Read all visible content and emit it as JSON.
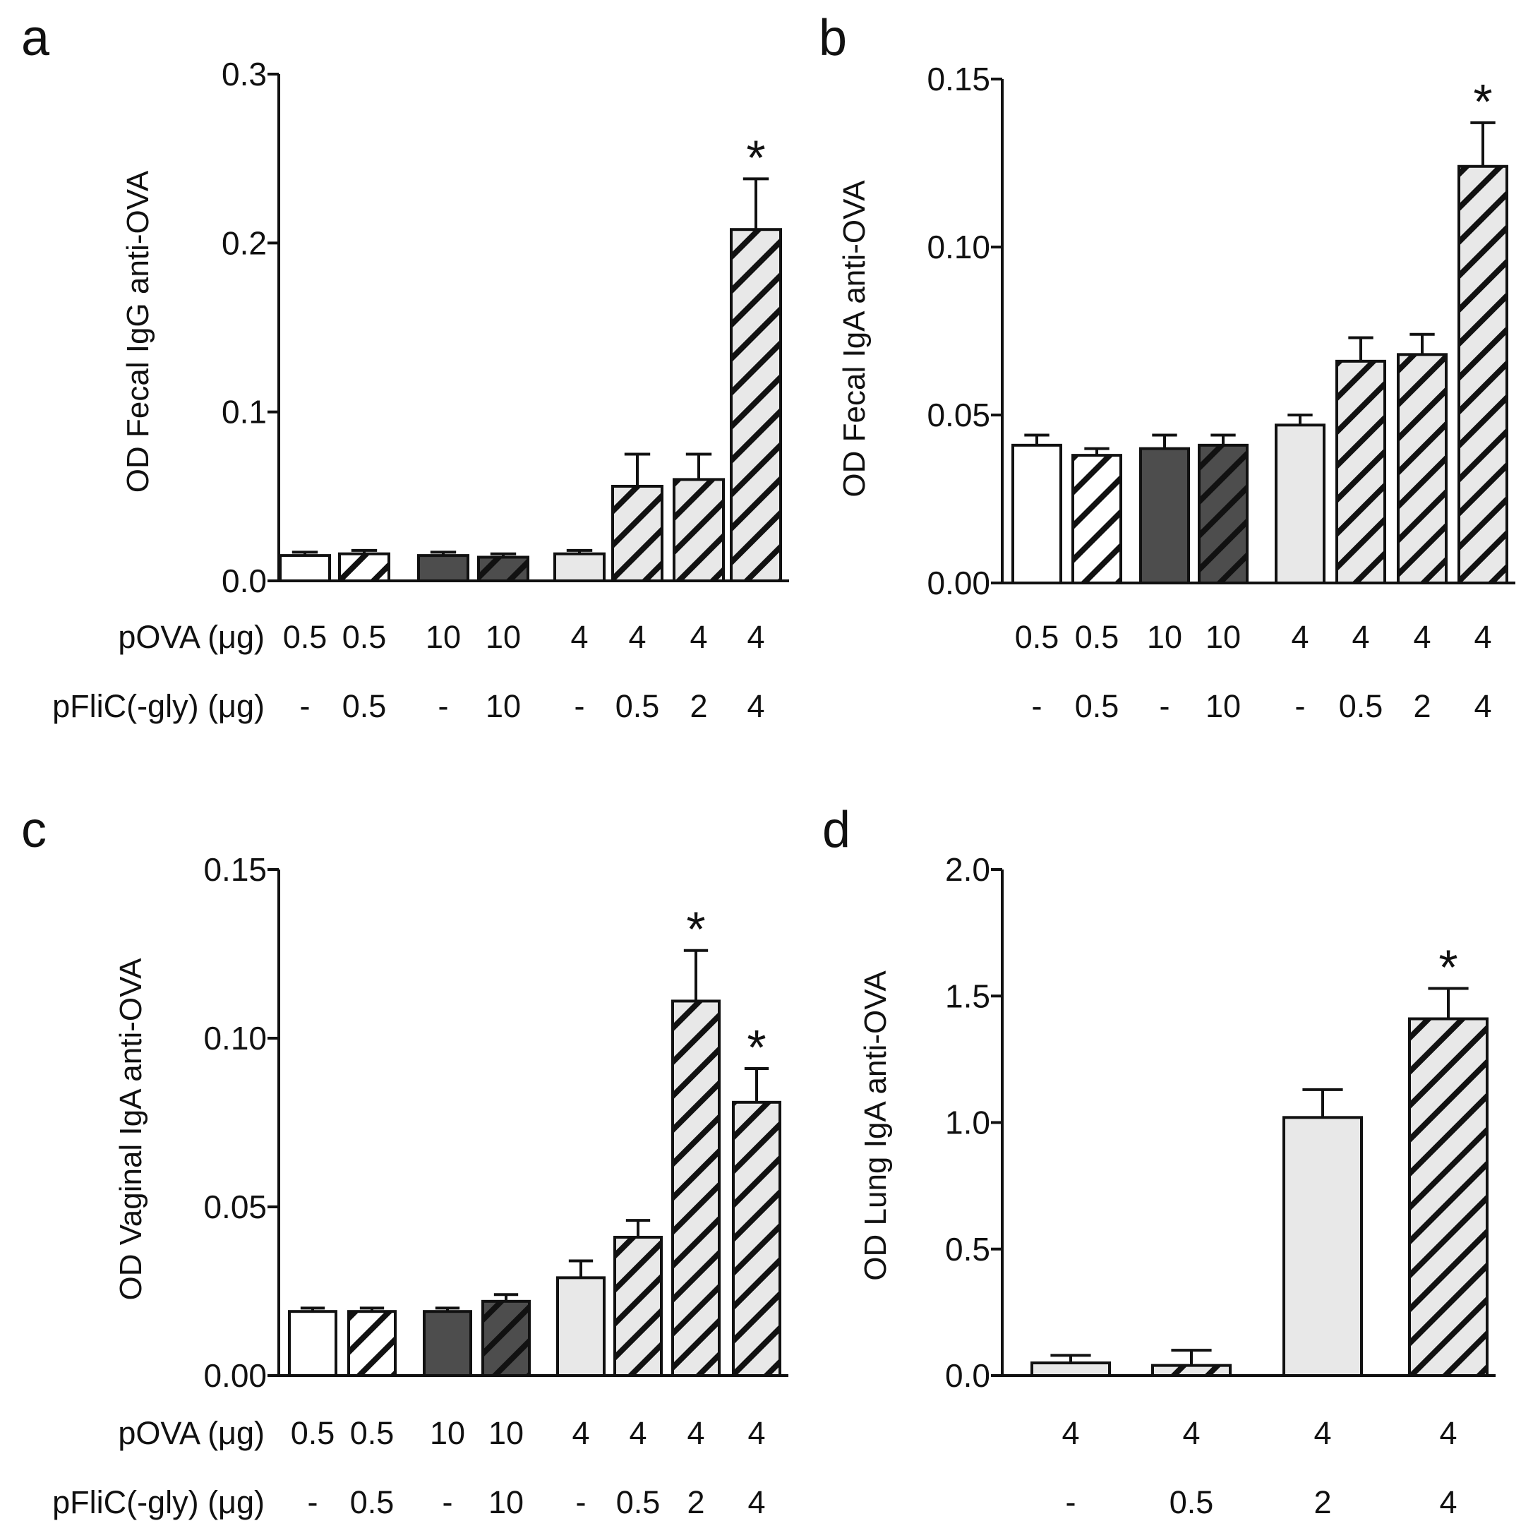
{
  "colors": {
    "white": "#ffffff",
    "dark": "#4d4d4d",
    "light": "#e8e8e8",
    "stroke": "#111111"
  },
  "chart_data": [
    {
      "id": "a",
      "letter": "a",
      "type": "bar",
      "ylabel": "OD Fecal IgG anti-OVA",
      "ylim": [
        0,
        0.3
      ],
      "yticks": [
        "0.0",
        "0.1",
        "0.2",
        "0.3"
      ],
      "rows": [
        {
          "label": "pOVA (μg)",
          "values": [
            "0.5",
            "0.5",
            "10",
            "10",
            "4",
            "4",
            "4",
            "4"
          ]
        },
        {
          "label": "pFliC(-gly) (μg)",
          "values": [
            "-",
            "0.5",
            "-",
            "10",
            "-",
            "0.5",
            "2",
            "4"
          ]
        }
      ],
      "bars": [
        {
          "value": 0.015,
          "error": 0.002,
          "fill": "white",
          "hatch": false,
          "star": ""
        },
        {
          "value": 0.016,
          "error": 0.002,
          "fill": "white",
          "hatch": true,
          "star": ""
        },
        {
          "value": 0.015,
          "error": 0.002,
          "fill": "dark",
          "hatch": false,
          "star": ""
        },
        {
          "value": 0.014,
          "error": 0.002,
          "fill": "dark",
          "hatch": true,
          "star": ""
        },
        {
          "value": 0.016,
          "error": 0.002,
          "fill": "light",
          "hatch": false,
          "star": ""
        },
        {
          "value": 0.056,
          "error": 0.019,
          "fill": "light",
          "hatch": true,
          "star": ""
        },
        {
          "value": 0.06,
          "error": 0.015,
          "fill": "light",
          "hatch": true,
          "star": ""
        },
        {
          "value": 0.208,
          "error": 0.03,
          "fill": "light",
          "hatch": true,
          "star": "*"
        }
      ]
    },
    {
      "id": "b",
      "letter": "b",
      "type": "bar",
      "ylabel": "OD Fecal IgA anti-OVA",
      "ylim": [
        0,
        0.15
      ],
      "yticks": [
        "0.00",
        "0.05",
        "0.10",
        "0.15"
      ],
      "rows": [
        {
          "label": "",
          "values": [
            "0.5",
            "0.5",
            "10",
            "10",
            "4",
            "4",
            "4",
            "4"
          ]
        },
        {
          "label": "",
          "values": [
            "-",
            "0.5",
            "-",
            "10",
            "-",
            "0.5",
            "2",
            "4"
          ]
        }
      ],
      "bars": [
        {
          "value": 0.041,
          "error": 0.003,
          "fill": "white",
          "hatch": false,
          "star": ""
        },
        {
          "value": 0.038,
          "error": 0.002,
          "fill": "white",
          "hatch": true,
          "star": ""
        },
        {
          "value": 0.04,
          "error": 0.004,
          "fill": "dark",
          "hatch": false,
          "star": ""
        },
        {
          "value": 0.041,
          "error": 0.003,
          "fill": "dark",
          "hatch": true,
          "star": ""
        },
        {
          "value": 0.047,
          "error": 0.003,
          "fill": "light",
          "hatch": false,
          "star": ""
        },
        {
          "value": 0.066,
          "error": 0.007,
          "fill": "light",
          "hatch": true,
          "star": ""
        },
        {
          "value": 0.068,
          "error": 0.006,
          "fill": "light",
          "hatch": true,
          "star": ""
        },
        {
          "value": 0.124,
          "error": 0.013,
          "fill": "light",
          "hatch": true,
          "star": "*"
        }
      ]
    },
    {
      "id": "c",
      "letter": "c",
      "type": "bar",
      "ylabel": "OD Vaginal IgA anti-OVA",
      "ylim": [
        0,
        0.15
      ],
      "yticks": [
        "0.00",
        "0.05",
        "0.10",
        "0.15"
      ],
      "rows": [
        {
          "label": "pOVA (μg)",
          "values": [
            "0.5",
            "0.5",
            "10",
            "10",
            "4",
            "4",
            "4",
            "4"
          ]
        },
        {
          "label": "pFliC(-gly) (μg)",
          "values": [
            "-",
            "0.5",
            "-",
            "10",
            "-",
            "0.5",
            "2",
            "4"
          ]
        }
      ],
      "bars": [
        {
          "value": 0.019,
          "error": 0.001,
          "fill": "white",
          "hatch": false,
          "star": ""
        },
        {
          "value": 0.019,
          "error": 0.001,
          "fill": "white",
          "hatch": true,
          "star": ""
        },
        {
          "value": 0.019,
          "error": 0.001,
          "fill": "dark",
          "hatch": false,
          "star": ""
        },
        {
          "value": 0.022,
          "error": 0.002,
          "fill": "dark",
          "hatch": true,
          "star": ""
        },
        {
          "value": 0.029,
          "error": 0.005,
          "fill": "light",
          "hatch": false,
          "star": ""
        },
        {
          "value": 0.041,
          "error": 0.005,
          "fill": "light",
          "hatch": true,
          "star": ""
        },
        {
          "value": 0.111,
          "error": 0.015,
          "fill": "light",
          "hatch": true,
          "star": "*"
        },
        {
          "value": 0.081,
          "error": 0.01,
          "fill": "light",
          "hatch": true,
          "star": "*"
        }
      ]
    },
    {
      "id": "d",
      "letter": "d",
      "type": "bar",
      "ylabel": "OD Lung IgA anti-OVA",
      "ylim": [
        0,
        2.0
      ],
      "yticks": [
        "0.0",
        "0.5",
        "1.0",
        "1.5",
        "2.0"
      ],
      "rows": [
        {
          "label": "",
          "values": [
            "4",
            "4",
            "4",
            "4"
          ]
        },
        {
          "label": "",
          "values": [
            "-",
            "0.5",
            "2",
            "4"
          ]
        }
      ],
      "bars": [
        {
          "value": 0.05,
          "error": 0.03,
          "fill": "light",
          "hatch": false,
          "star": ""
        },
        {
          "value": 0.04,
          "error": 0.06,
          "fill": "light",
          "hatch": true,
          "star": ""
        },
        {
          "value": 1.02,
          "error": 0.11,
          "fill": "light",
          "hatch": false,
          "star": ""
        },
        {
          "value": 1.41,
          "error": 0.12,
          "fill": "light",
          "hatch": true,
          "star": "*"
        }
      ]
    }
  ]
}
